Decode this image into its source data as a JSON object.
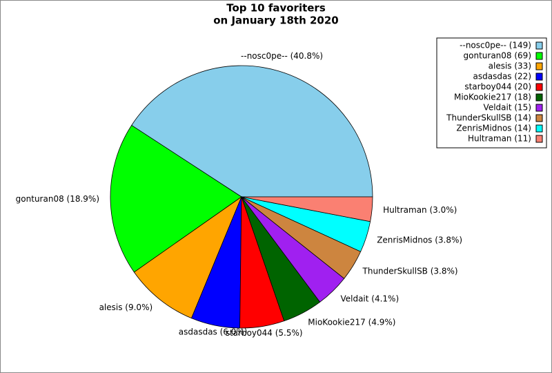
{
  "chart_data": {
    "type": "pie",
    "title": "Top 10 favoriters",
    "subtitle": "on January 18th 2020",
    "categories": [
      "--nosc0pe--",
      "gonturan08",
      "alesis",
      "asdasdas",
      "starboy044",
      "MioKookie217",
      "Veldait",
      "ThunderSkullSB",
      "ZenrisMidnos",
      "Hultraman"
    ],
    "values": [
      149,
      69,
      33,
      22,
      20,
      18,
      15,
      14,
      14,
      11
    ],
    "colors": [
      "#87ceeb",
      "#00ff00",
      "#ffa500",
      "#0000ff",
      "#ff0000",
      "#006400",
      "#a020f0",
      "#cd853f",
      "#00ffff",
      "#fa8072"
    ],
    "slice_labels": [
      "--nosc0pe-- (40.8%)",
      "gonturan08 (18.9%)",
      "alesis (9.0%)",
      "asdasdas (6.0%)",
      "starboy044 (5.5%)",
      "MioKookie217 (4.9%)",
      "Veldait (4.1%)",
      "ThunderSkullSB (3.8%)",
      "ZenrisMidnos (3.8%)",
      "Hultraman (3.0%)"
    ],
    "legend_labels": [
      "--nosc0pe-- (149)",
      "gonturan08 (69)",
      "alesis (33)",
      "asdasdas (22)",
      "starboy044 (20)",
      "MioKookie217 (18)",
      "Veldait (15)",
      "ThunderSkullSB (14)",
      "ZenrisMidnos (14)",
      "Hultraman (11)"
    ],
    "legend": "top-right"
  }
}
